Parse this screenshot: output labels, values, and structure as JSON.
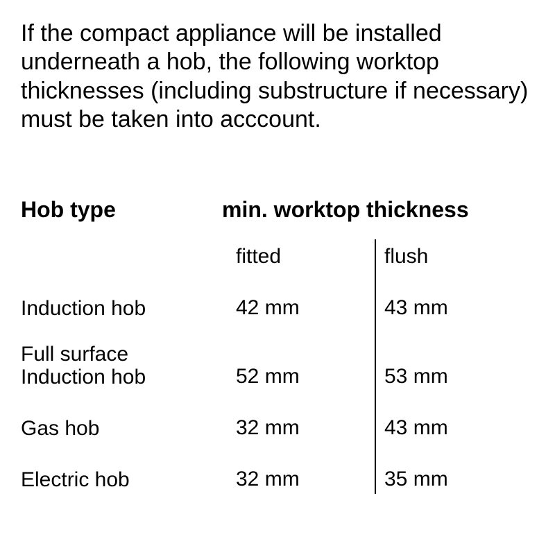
{
  "intro": "If the compact appliance will be installed underneath a hob, the following worktop thicknesses (including substructure if necessary) must be taken into acccount.",
  "table": {
    "header_hob": "Hob type",
    "header_thickness": "min. worktop thickness",
    "sub_fitted": "fitted",
    "sub_flush": "flush",
    "rows": [
      {
        "hob": "Induction hob",
        "fitted": "42 mm",
        "flush": "43 mm"
      },
      {
        "hob": "Full surface\nInduction hob",
        "fitted": "52 mm",
        "flush": "53 mm"
      },
      {
        "hob": "Gas hob",
        "fitted": "32 mm",
        "flush": "43 mm"
      },
      {
        "hob": "Electric hob",
        "fitted": "32 mm",
        "flush": "35 mm"
      }
    ]
  },
  "style": {
    "background_color": "#ffffff",
    "text_color": "#000000",
    "divider_color": "#000000",
    "intro_fontsize": 34,
    "header_fontsize": 32,
    "body_fontsize": 30,
    "col_hob_width": 290,
    "col_fit_width": 200,
    "col_flush_width": 200,
    "divider_width": 2
  }
}
